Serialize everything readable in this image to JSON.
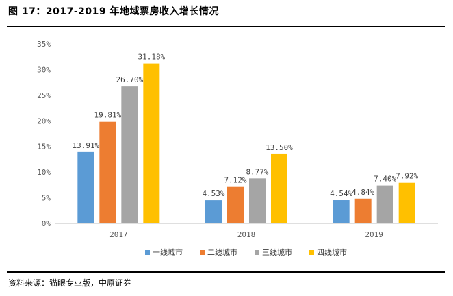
{
  "figure": {
    "title": "图 17：2017-2019 年地域票房收入增长情况",
    "source": "资料来源：猫眼专业版，中原证券"
  },
  "chart_data": {
    "type": "bar",
    "title": "",
    "categories": [
      "2017",
      "2018",
      "2019"
    ],
    "series": [
      {
        "name": "一线城市",
        "color": "#5B9BD5",
        "values": [
          13.91,
          4.53,
          4.54
        ],
        "labels": [
          "13.91%",
          "4.53%",
          "4.54%"
        ]
      },
      {
        "name": "二线城市",
        "color": "#ED7D31",
        "values": [
          19.81,
          7.12,
          4.84
        ],
        "labels": [
          "19.81%",
          "7.12%",
          "4.84%"
        ]
      },
      {
        "name": "三线城市",
        "color": "#A5A5A5",
        "values": [
          26.7,
          8.77,
          7.4
        ],
        "labels": [
          "26.70%",
          "8.77%",
          "7.40%"
        ]
      },
      {
        "name": "四线城市",
        "color": "#FFC000",
        "values": [
          31.18,
          13.5,
          7.92
        ],
        "labels": [
          "31.18%",
          "13.50%",
          "7.92%"
        ]
      }
    ],
    "ylim": [
      0,
      35
    ],
    "yticks": [
      "0%",
      "5%",
      "10%",
      "15%",
      "20%",
      "25%",
      "30%",
      "35%"
    ],
    "ytick_values": [
      0,
      5,
      10,
      15,
      20,
      25,
      30,
      35
    ],
    "xlabel": "",
    "ylabel": "",
    "grid": false,
    "legend": "bottom"
  }
}
